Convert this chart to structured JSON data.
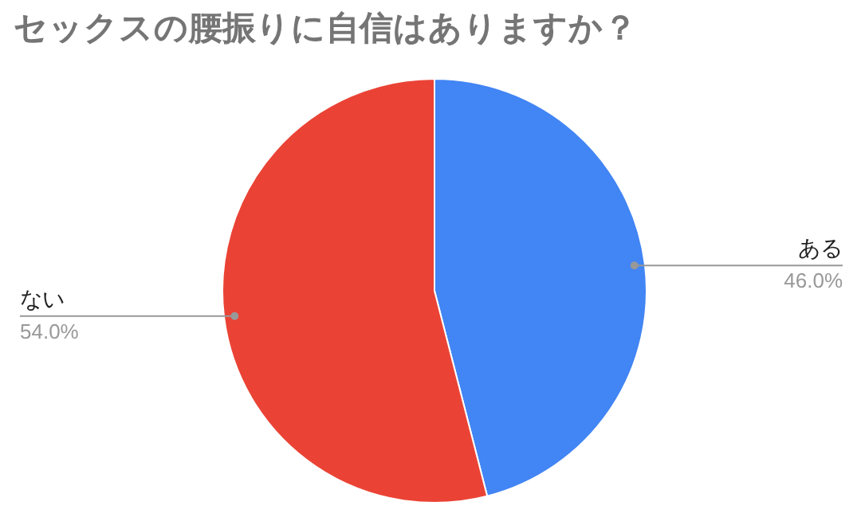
{
  "chart_data": {
    "type": "pie",
    "title": "セックスの腰振りに自信はありますか？",
    "categories": [
      "ある",
      "ない"
    ],
    "values": [
      46.0,
      54.0
    ],
    "value_labels": [
      "46.0%",
      "54.0%"
    ],
    "colors": [
      "#4285f4",
      "#ea4335"
    ]
  }
}
